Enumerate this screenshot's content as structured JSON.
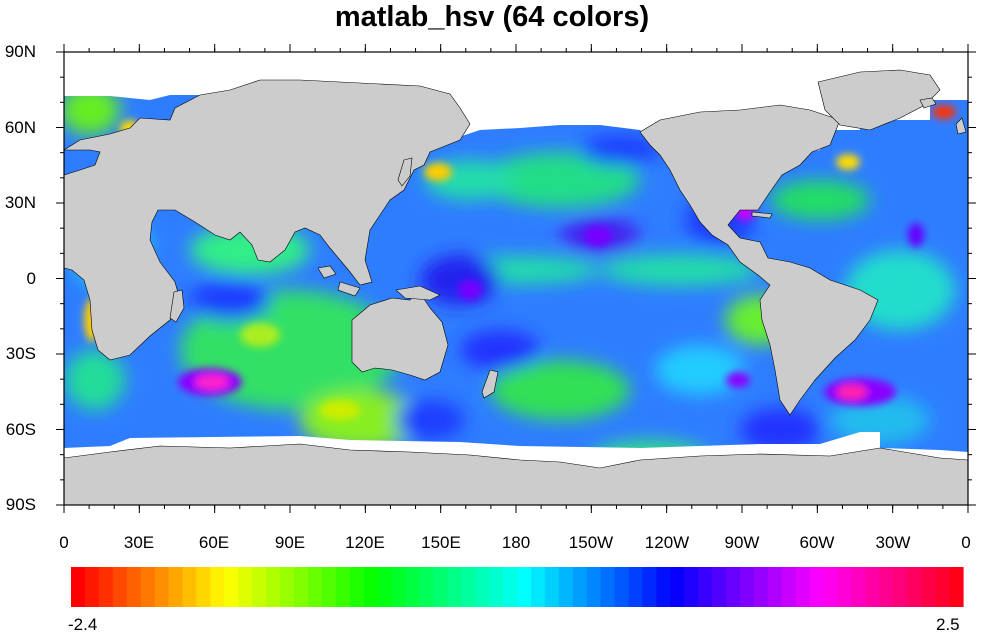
{
  "title": "matlab_hsv (64 colors)",
  "lat_labels": [
    "90N",
    "60N",
    "30N",
    "0",
    "30S",
    "60S",
    "90S"
  ],
  "lon_labels": [
    "0",
    "30E",
    "60E",
    "90E",
    "120E",
    "150E",
    "180",
    "150W",
    "120W",
    "90W",
    "60W",
    "30W",
    "0"
  ],
  "colorbar": {
    "min_label": "-2.4",
    "max_label": "2.5",
    "colormap": "matlab_hsv",
    "n_colors": 64,
    "colors_stops": [
      "#ff0000",
      "#ffff00",
      "#00ff00",
      "#00ffff",
      "#0000ff",
      "#ff00ff",
      "#ff0000"
    ]
  },
  "colors": {
    "land": "#cccccc",
    "ice_mask": "#ffffff",
    "ocean_base": "#2f7dff"
  }
}
